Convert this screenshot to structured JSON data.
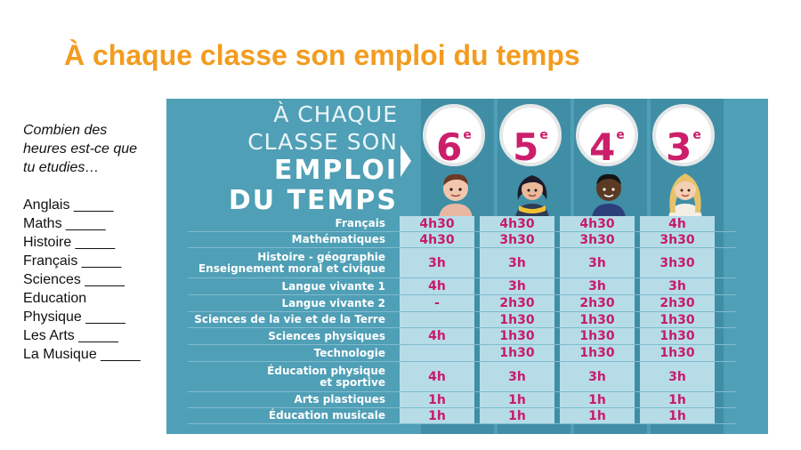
{
  "slide": {
    "title": "À chaque classe son emploi du temps"
  },
  "side": {
    "question_lines": [
      "Combien des",
      "heures est-ce que",
      "tu etudies…"
    ],
    "items": [
      "Anglais _____",
      "Maths _____",
      "Histoire _____",
      "Français  _____",
      "Sciences  _____",
      "Education",
      "Physique _____",
      "Les Arts _____",
      "La Musique  _____"
    ]
  },
  "infographic": {
    "logo_lines": [
      "À CHAQUE",
      "CLASSE SON",
      "EMPLOI",
      "DU TEMPS"
    ],
    "grades": [
      {
        "num": "6",
        "sup": "e"
      },
      {
        "num": "5",
        "sup": "e"
      },
      {
        "num": "4",
        "sup": "e"
      },
      {
        "num": "3",
        "sup": "e"
      }
    ],
    "rows": [
      {
        "label": "Français",
        "values": [
          "4h30",
          "4h30",
          "4h30",
          "4h"
        ]
      },
      {
        "label": "Mathématiques",
        "values": [
          "4h30",
          "3h30",
          "3h30",
          "3h30"
        ]
      },
      {
        "label": "Histoire - géographie\nEnseignement moral et civique",
        "values": [
          "3h",
          "3h",
          "3h",
          "3h30"
        ]
      },
      {
        "label": "Langue vivante 1",
        "values": [
          "4h",
          "3h",
          "3h",
          "3h"
        ]
      },
      {
        "label": "Langue vivante 2",
        "values": [
          "-",
          "2h30",
          "2h30",
          "2h30"
        ]
      },
      {
        "label": "Sciences de la vie et de la Terre",
        "values": [
          "",
          "1h30",
          "1h30",
          "1h30"
        ]
      },
      {
        "label": "Sciences physiques",
        "values": [
          "4h",
          "1h30",
          "1h30",
          "1h30"
        ]
      },
      {
        "label": "Technologie",
        "values": [
          "",
          "1h30",
          "1h30",
          "1h30"
        ]
      },
      {
        "label": "Éducation physique\net sportive",
        "values": [
          "4h",
          "3h",
          "3h",
          "3h"
        ]
      },
      {
        "label": "Arts plastiques",
        "values": [
          "1h",
          "1h",
          "1h",
          "1h"
        ]
      },
      {
        "label": "Éducation musicale",
        "values": [
          "1h",
          "1h",
          "1h",
          "1h"
        ]
      }
    ]
  },
  "colors": {
    "title": "#f39c1f",
    "panel": "#4f9fb6",
    "value": "#c81a6a",
    "cell": "#b6dce7"
  }
}
